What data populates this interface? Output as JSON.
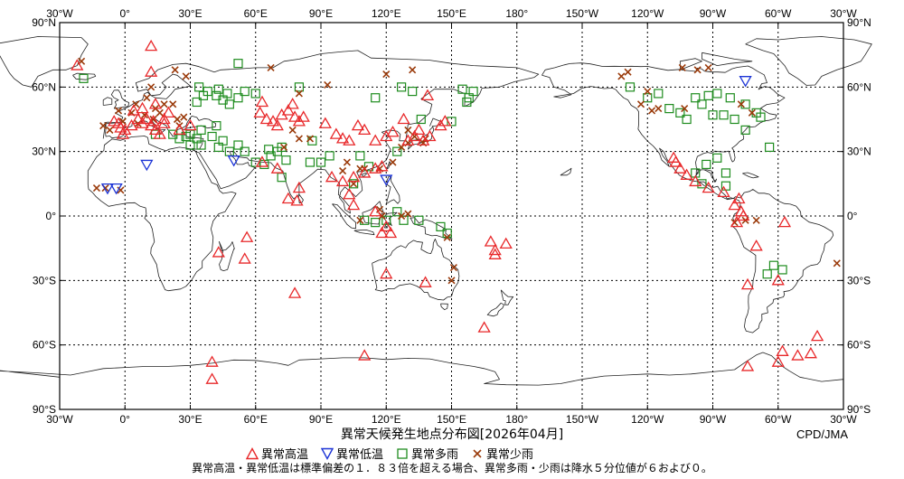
{
  "title": "異常天候発生地点分布図[2026年04月]",
  "credit": "CPD/JMA",
  "note": "異常高温・異常低温は標準偏差の１．８３倍を超える場合、異常多雨・少雨は降水５分位値が６および０。",
  "colors": {
    "hot": "#e8282a",
    "cold": "#1c34d6",
    "wet": "#1e8c1e",
    "dry": "#9a3a0a"
  },
  "legend": [
    {
      "key": "hot",
      "label": "異常高温",
      "symbol": "triangle-up-icon"
    },
    {
      "key": "cold",
      "label": "異常低温",
      "symbol": "triangle-down-icon"
    },
    {
      "key": "wet",
      "label": "異常多雨",
      "symbol": "square-icon"
    },
    {
      "key": "dry",
      "label": "異常少雨",
      "symbol": "cross-icon"
    }
  ],
  "axes": {
    "lon_labels": [
      "30°W",
      "0°",
      "30°E",
      "60°E",
      "90°E",
      "120°E",
      "150°E",
      "180°",
      "150°W",
      "120°W",
      "90°W",
      "60°W",
      "30°W"
    ],
    "lat_labels": [
      "90°N",
      "60°N",
      "30°N",
      "0°",
      "30°S",
      "60°S",
      "90°S"
    ],
    "lon_range": [
      -30,
      330
    ],
    "lat_range": [
      -90,
      90
    ]
  },
  "stations": {
    "hot": [
      [
        -22,
        70
      ],
      [
        12,
        79
      ],
      [
        -5,
        44
      ],
      [
        -3,
        43
      ],
      [
        -2,
        41
      ],
      [
        0,
        40
      ],
      [
        -1,
        38
      ],
      [
        3,
        42
      ],
      [
        6,
        45
      ],
      [
        8,
        43
      ],
      [
        10,
        45
      ],
      [
        12,
        42
      ],
      [
        14,
        40
      ],
      [
        16,
        38
      ],
      [
        13,
        44
      ],
      [
        18,
        45
      ],
      [
        20,
        48
      ],
      [
        4,
        49
      ],
      [
        8,
        50
      ],
      [
        14,
        52
      ],
      [
        12,
        67
      ],
      [
        63,
        53
      ],
      [
        62,
        48
      ],
      [
        65,
        45
      ],
      [
        68,
        44
      ],
      [
        70,
        42
      ],
      [
        72,
        47
      ],
      [
        75,
        49
      ],
      [
        78,
        46
      ],
      [
        80,
        44
      ],
      [
        82,
        46
      ],
      [
        77,
        52
      ],
      [
        92,
        43
      ],
      [
        97,
        38
      ],
      [
        100,
        36
      ],
      [
        103,
        35
      ],
      [
        107,
        42
      ],
      [
        110,
        40
      ],
      [
        115,
        35
      ],
      [
        120,
        37
      ],
      [
        123,
        39
      ],
      [
        128,
        45
      ],
      [
        130,
        35
      ],
      [
        133,
        37
      ],
      [
        135,
        40
      ],
      [
        137,
        35
      ],
      [
        140,
        37
      ],
      [
        145,
        42
      ],
      [
        147,
        44
      ],
      [
        139,
        56
      ],
      [
        63,
        25
      ],
      [
        70,
        22
      ],
      [
        75,
        8
      ],
      [
        79,
        7
      ],
      [
        80,
        13
      ],
      [
        95,
        18
      ],
      [
        100,
        16
      ],
      [
        103,
        10
      ],
      [
        105,
        18
      ],
      [
        110,
        20
      ],
      [
        115,
        22
      ],
      [
        118,
        23
      ],
      [
        105,
        5
      ],
      [
        115,
        2
      ],
      [
        120,
        -5
      ],
      [
        118,
        -8
      ],
      [
        138,
        -31
      ],
      [
        120,
        -27
      ],
      [
        122,
        -8
      ],
      [
        165,
        -52
      ],
      [
        168,
        -12
      ],
      [
        170,
        -16
      ],
      [
        175,
        -13
      ],
      [
        170,
        -18
      ],
      [
        56,
        -10
      ],
      [
        55,
        -20
      ],
      [
        43,
        -17
      ],
      [
        78,
        -36
      ],
      [
        40,
        -68
      ],
      [
        40,
        -76
      ],
      [
        110,
        -65
      ],
      [
        252,
        27
      ],
      [
        253,
        25
      ],
      [
        255,
        22
      ],
      [
        258,
        19
      ],
      [
        262,
        16
      ],
      [
        268,
        13
      ],
      [
        275,
        11
      ],
      [
        280,
        5
      ],
      [
        282,
        8
      ],
      [
        283,
        2
      ],
      [
        284,
        0
      ],
      [
        281,
        -3
      ],
      [
        286,
        -32
      ],
      [
        300,
        -30
      ],
      [
        318,
        -56
      ],
      [
        315,
        -64
      ],
      [
        309,
        -65
      ],
      [
        302,
        -63
      ],
      [
        286,
        -70
      ],
      [
        300,
        -68
      ],
      [
        290,
        -14
      ],
      [
        303,
        -3
      ],
      [
        30,
        42
      ],
      [
        25,
        40
      ],
      [
        18,
        43
      ]
    ],
    "cold": [
      [
        -8,
        13
      ],
      [
        -4,
        13
      ],
      [
        10,
        24
      ],
      [
        50,
        26
      ],
      [
        120,
        17
      ],
      [
        285,
        63
      ]
    ],
    "wet": [
      [
        -19,
        64
      ],
      [
        52,
        71
      ],
      [
        34,
        60
      ],
      [
        38,
        58
      ],
      [
        42,
        56
      ],
      [
        45,
        54
      ],
      [
        48,
        52
      ],
      [
        52,
        55
      ],
      [
        55,
        58
      ],
      [
        60,
        57
      ],
      [
        43,
        59
      ],
      [
        47,
        57
      ],
      [
        36,
        56
      ],
      [
        33,
        53
      ],
      [
        14,
        38
      ],
      [
        22,
        38
      ],
      [
        25,
        36
      ],
      [
        28,
        37
      ],
      [
        30,
        38
      ],
      [
        33,
        36
      ],
      [
        35,
        33
      ],
      [
        40,
        37
      ],
      [
        45,
        35
      ],
      [
        43,
        32
      ],
      [
        48,
        30
      ],
      [
        52,
        33
      ],
      [
        55,
        30
      ],
      [
        35,
        40
      ],
      [
        42,
        42
      ],
      [
        30,
        33
      ],
      [
        80,
        60
      ],
      [
        115,
        55
      ],
      [
        127,
        60
      ],
      [
        132,
        58
      ],
      [
        136,
        45
      ],
      [
        150,
        44
      ],
      [
        155,
        59
      ],
      [
        158,
        55
      ],
      [
        160,
        58
      ],
      [
        157,
        53
      ],
      [
        60,
        25
      ],
      [
        64,
        24
      ],
      [
        66,
        31
      ],
      [
        67,
        28
      ],
      [
        70,
        30
      ],
      [
        72,
        32
      ],
      [
        74,
        26
      ],
      [
        72,
        18
      ],
      [
        85,
        25
      ],
      [
        90,
        25
      ],
      [
        94,
        28
      ],
      [
        86,
        35
      ],
      [
        105,
        15
      ],
      [
        108,
        28
      ],
      [
        112,
        23
      ],
      [
        125,
        30
      ],
      [
        110,
        -2
      ],
      [
        115,
        -3
      ],
      [
        120,
        -2
      ],
      [
        125,
        2
      ],
      [
        128,
        -2
      ],
      [
        135,
        -2
      ],
      [
        145,
        -5
      ],
      [
        148,
        -8
      ],
      [
        232,
        60
      ],
      [
        240,
        55
      ],
      [
        245,
        57
      ],
      [
        250,
        50
      ],
      [
        255,
        48
      ],
      [
        258,
        45
      ],
      [
        262,
        55
      ],
      [
        265,
        52
      ],
      [
        268,
        56
      ],
      [
        272,
        57
      ],
      [
        275,
        47
      ],
      [
        278,
        55
      ],
      [
        285,
        52
      ],
      [
        290,
        48
      ],
      [
        292,
        46
      ],
      [
        296,
        32
      ],
      [
        285,
        40
      ],
      [
        280,
        45
      ],
      [
        270,
        47
      ],
      [
        262,
        20
      ],
      [
        265,
        15
      ],
      [
        276,
        20
      ],
      [
        272,
        27
      ],
      [
        267,
        24
      ],
      [
        298,
        -23
      ],
      [
        302,
        -25
      ],
      [
        295,
        -27
      ],
      [
        276,
        14
      ]
    ],
    "dry": [
      [
        -20,
        72
      ],
      [
        23,
        68
      ],
      [
        28,
        65
      ],
      [
        12,
        60
      ],
      [
        10,
        55
      ],
      [
        5,
        52
      ],
      [
        -3,
        49
      ],
      [
        3,
        48
      ],
      [
        14,
        50
      ],
      [
        18,
        52
      ],
      [
        22,
        52
      ],
      [
        16,
        48
      ],
      [
        -10,
        42
      ],
      [
        -7,
        40
      ],
      [
        -1,
        44
      ],
      [
        6,
        43
      ],
      [
        13,
        45
      ],
      [
        9,
        47
      ],
      [
        24,
        45
      ],
      [
        25,
        42
      ],
      [
        27,
        46
      ],
      [
        -2,
        12
      ],
      [
        -13,
        13
      ],
      [
        -9,
        13
      ],
      [
        67,
        69
      ],
      [
        80,
        57
      ],
      [
        93,
        61
      ],
      [
        120,
        66
      ],
      [
        132,
        68
      ],
      [
        77,
        40
      ],
      [
        73,
        32
      ],
      [
        80,
        36
      ],
      [
        85,
        36
      ],
      [
        102,
        25
      ],
      [
        100,
        21
      ],
      [
        108,
        22
      ],
      [
        105,
        15
      ],
      [
        117,
        22
      ],
      [
        123,
        25
      ],
      [
        127,
        32
      ],
      [
        130,
        34
      ],
      [
        133,
        37
      ],
      [
        130,
        40
      ],
      [
        137,
        34
      ],
      [
        138,
        36
      ],
      [
        110,
        22
      ],
      [
        108,
        -2
      ],
      [
        117,
        3
      ],
      [
        118,
        0
      ],
      [
        127,
        0
      ],
      [
        130,
        1
      ],
      [
        150,
        -30
      ],
      [
        151,
        -24
      ],
      [
        148,
        -10
      ],
      [
        228,
        65
      ],
      [
        231,
        67
      ],
      [
        240,
        58
      ],
      [
        237,
        52
      ],
      [
        242,
        49
      ],
      [
        245,
        50
      ],
      [
        256,
        69
      ],
      [
        263,
        68
      ],
      [
        268,
        69
      ],
      [
        257,
        50
      ],
      [
        280,
        -3
      ],
      [
        285,
        -2
      ],
      [
        290,
        -2
      ],
      [
        327,
        -22
      ],
      [
        288,
        48
      ],
      [
        283,
        52
      ]
    ]
  }
}
